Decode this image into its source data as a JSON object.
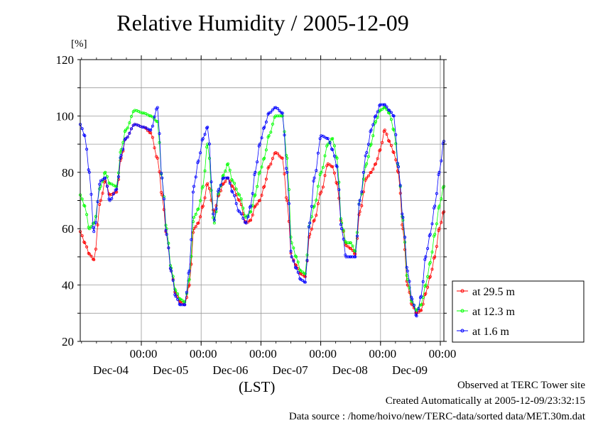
{
  "chart_data": {
    "type": "line",
    "title": "Relative Humidity / 2005-12-09",
    "ylabel": "[%]",
    "xlabel": "(LST)",
    "ylim": [
      20,
      120
    ],
    "yticks": [
      20,
      40,
      60,
      80,
      100,
      120
    ],
    "xlim_days": [
      0,
      6
    ],
    "time_ticks": [
      {
        "time": "00:00",
        "date": "Dec-04"
      },
      {
        "time": "00:00",
        "date": "Dec-05"
      },
      {
        "time": "00:00",
        "date": "Dec-06"
      },
      {
        "time": "00:00",
        "date": "Dec-07"
      },
      {
        "time": "00:00",
        "date": "Dec-08"
      },
      {
        "time": "00:00",
        "date": "Dec-09"
      }
    ],
    "grid": true,
    "legend_position": "right",
    "series": [
      {
        "name": "at 29.5 m",
        "color": "#ff0000",
        "points": [
          [
            0.0,
            59
          ],
          [
            0.1,
            55
          ],
          [
            0.2,
            51
          ],
          [
            0.3,
            49
          ],
          [
            0.45,
            70
          ],
          [
            0.55,
            77
          ],
          [
            0.65,
            72
          ],
          [
            0.8,
            73
          ],
          [
            0.9,
            85
          ],
          [
            1.0,
            92
          ],
          [
            1.2,
            97
          ],
          [
            1.4,
            96
          ],
          [
            1.55,
            94
          ],
          [
            1.7,
            85
          ],
          [
            1.8,
            72
          ],
          [
            1.9,
            58
          ],
          [
            2.0,
            45
          ],
          [
            2.1,
            37
          ],
          [
            2.2,
            34
          ],
          [
            2.3,
            33
          ],
          [
            2.4,
            40
          ],
          [
            2.5,
            60
          ],
          [
            2.6,
            62
          ],
          [
            2.7,
            68
          ],
          [
            2.8,
            76
          ],
          [
            2.95,
            66
          ],
          [
            3.05,
            72
          ],
          [
            3.15,
            76
          ],
          [
            3.25,
            78
          ],
          [
            3.35,
            75
          ],
          [
            3.5,
            70
          ],
          [
            3.65,
            62
          ],
          [
            3.75,
            63
          ],
          [
            3.85,
            68
          ],
          [
            3.95,
            70
          ],
          [
            4.05,
            75
          ],
          [
            4.15,
            82
          ],
          [
            4.3,
            87
          ],
          [
            4.45,
            85
          ],
          [
            4.55,
            70
          ],
          [
            4.65,
            50
          ],
          [
            4.75,
            47
          ],
          [
            4.85,
            44
          ],
          [
            4.95,
            43
          ],
          [
            5.05,
            58
          ],
          [
            5.15,
            63
          ],
          [
            5.3,
            73
          ],
          [
            5.45,
            83
          ],
          [
            5.55,
            82
          ],
          [
            5.65,
            76
          ],
          [
            5.75,
            62
          ],
          [
            5.85,
            54
          ],
          [
            5.95,
            53
          ],
          [
            6.05,
            51
          ],
          [
            6.15,
            66
          ],
          [
            6.3,
            78
          ],
          [
            6.4,
            80
          ],
          [
            6.5,
            83
          ],
          [
            6.6,
            88
          ],
          [
            6.7,
            95
          ],
          [
            6.8,
            91
          ],
          [
            6.9,
            87
          ],
          [
            7.0,
            80
          ],
          [
            7.1,
            60
          ],
          [
            7.2,
            40
          ],
          [
            7.3,
            33
          ],
          [
            7.4,
            30
          ],
          [
            7.5,
            31
          ],
          [
            7.6,
            37
          ],
          [
            7.7,
            43
          ],
          [
            7.8,
            50
          ],
          [
            7.9,
            60
          ],
          [
            8.0,
            66
          ]
        ]
      },
      {
        "name": "at 12.3 m",
        "color": "#00ff00",
        "points": [
          [
            0.0,
            72
          ],
          [
            0.1,
            68
          ],
          [
            0.2,
            60
          ],
          [
            0.3,
            62
          ],
          [
            0.45,
            75
          ],
          [
            0.55,
            80
          ],
          [
            0.65,
            76
          ],
          [
            0.8,
            75
          ],
          [
            0.9,
            88
          ],
          [
            1.0,
            95
          ],
          [
            1.2,
            102
          ],
          [
            1.4,
            101
          ],
          [
            1.55,
            100
          ],
          [
            1.7,
            98
          ],
          [
            1.8,
            78
          ],
          [
            1.9,
            60
          ],
          [
            2.0,
            46
          ],
          [
            2.1,
            38
          ],
          [
            2.2,
            35
          ],
          [
            2.3,
            34
          ],
          [
            2.4,
            42
          ],
          [
            2.5,
            64
          ],
          [
            2.6,
            67
          ],
          [
            2.7,
            75
          ],
          [
            2.8,
            90
          ],
          [
            2.95,
            62
          ],
          [
            3.05,
            73
          ],
          [
            3.15,
            79
          ],
          [
            3.25,
            83
          ],
          [
            3.35,
            77
          ],
          [
            3.5,
            72
          ],
          [
            3.65,
            64
          ],
          [
            3.75,
            66
          ],
          [
            3.85,
            72
          ],
          [
            3.95,
            80
          ],
          [
            4.05,
            85
          ],
          [
            4.15,
            93
          ],
          [
            4.3,
            100
          ],
          [
            4.45,
            100
          ],
          [
            4.55,
            85
          ],
          [
            4.65,
            55
          ],
          [
            4.75,
            50
          ],
          [
            4.85,
            45
          ],
          [
            4.95,
            44
          ],
          [
            5.05,
            62
          ],
          [
            5.15,
            68
          ],
          [
            5.3,
            80
          ],
          [
            5.45,
            90
          ],
          [
            5.55,
            92
          ],
          [
            5.65,
            85
          ],
          [
            5.75,
            62
          ],
          [
            5.85,
            55
          ],
          [
            5.95,
            55
          ],
          [
            6.05,
            52
          ],
          [
            6.15,
            70
          ],
          [
            6.3,
            83
          ],
          [
            6.4,
            90
          ],
          [
            6.5,
            98
          ],
          [
            6.6,
            102
          ],
          [
            6.7,
            103
          ],
          [
            6.8,
            101
          ],
          [
            6.9,
            95
          ],
          [
            7.0,
            82
          ],
          [
            7.1,
            63
          ],
          [
            7.2,
            42
          ],
          [
            7.3,
            34
          ],
          [
            7.4,
            31
          ],
          [
            7.5,
            33
          ],
          [
            7.6,
            40
          ],
          [
            7.7,
            48
          ],
          [
            7.8,
            58
          ],
          [
            7.9,
            68
          ],
          [
            8.0,
            75
          ]
        ]
      },
      {
        "name": "at 1.6 m",
        "color": "#0000ff",
        "points": [
          [
            0.0,
            97
          ],
          [
            0.1,
            93
          ],
          [
            0.2,
            80
          ],
          [
            0.3,
            59
          ],
          [
            0.45,
            77
          ],
          [
            0.55,
            78
          ],
          [
            0.65,
            70
          ],
          [
            0.8,
            74
          ],
          [
            0.9,
            86
          ],
          [
            1.0,
            92
          ],
          [
            1.2,
            97
          ],
          [
            1.4,
            96
          ],
          [
            1.55,
            95
          ],
          [
            1.7,
            103
          ],
          [
            1.8,
            78
          ],
          [
            1.9,
            58
          ],
          [
            2.0,
            45
          ],
          [
            2.1,
            36
          ],
          [
            2.2,
            33
          ],
          [
            2.3,
            33
          ],
          [
            2.4,
            45
          ],
          [
            2.5,
            75
          ],
          [
            2.6,
            84
          ],
          [
            2.7,
            92
          ],
          [
            2.8,
            96
          ],
          [
            2.95,
            63
          ],
          [
            3.05,
            74
          ],
          [
            3.15,
            78
          ],
          [
            3.25,
            78
          ],
          [
            3.35,
            73
          ],
          [
            3.5,
            66
          ],
          [
            3.65,
            62
          ],
          [
            3.75,
            68
          ],
          [
            3.85,
            80
          ],
          [
            3.95,
            90
          ],
          [
            4.05,
            96
          ],
          [
            4.15,
            101
          ],
          [
            4.3,
            103
          ],
          [
            4.45,
            101
          ],
          [
            4.55,
            80
          ],
          [
            4.65,
            50
          ],
          [
            4.75,
            46
          ],
          [
            4.85,
            42
          ],
          [
            4.95,
            41
          ],
          [
            5.05,
            62
          ],
          [
            5.15,
            78
          ],
          [
            5.3,
            93
          ],
          [
            5.45,
            92
          ],
          [
            5.55,
            88
          ],
          [
            5.65,
            82
          ],
          [
            5.75,
            60
          ],
          [
            5.85,
            50
          ],
          [
            5.95,
            50
          ],
          [
            6.05,
            50
          ],
          [
            6.15,
            70
          ],
          [
            6.3,
            87
          ],
          [
            6.4,
            95
          ],
          [
            6.5,
            100
          ],
          [
            6.6,
            104
          ],
          [
            6.7,
            104
          ],
          [
            6.8,
            102
          ],
          [
            6.9,
            100
          ],
          [
            7.0,
            82
          ],
          [
            7.1,
            64
          ],
          [
            7.2,
            45
          ],
          [
            7.3,
            35
          ],
          [
            7.4,
            29
          ],
          [
            7.5,
            36
          ],
          [
            7.6,
            50
          ],
          [
            7.7,
            58
          ],
          [
            7.8,
            68
          ],
          [
            7.9,
            80
          ],
          [
            8.0,
            91
          ]
        ]
      }
    ]
  },
  "footer": {
    "line1": "Observed at TERC Tower site",
    "line2": "Created Automatically at 2005-12-09/23:32:15",
    "line3": "Data source : /home/hoivo/new/TERC-data/sorted  data/MET.30m.dat"
  }
}
